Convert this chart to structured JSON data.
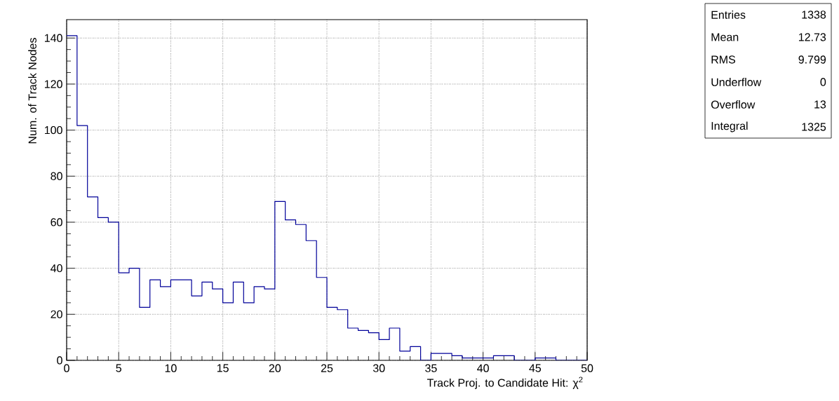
{
  "chart_data": {
    "type": "histogram",
    "xlabel": "Track Proj. to Candidate Hit: χ$^{2}$",
    "ylabel": "Num. of Track Nodes",
    "bins": [
      0,
      1,
      2,
      3,
      4,
      5,
      6,
      7,
      8,
      9,
      10,
      11,
      12,
      13,
      14,
      15,
      16,
      17,
      18,
      19,
      20,
      21,
      22,
      23,
      24,
      25,
      26,
      27,
      28,
      29,
      30,
      31,
      32,
      33,
      34,
      35,
      36,
      37,
      38,
      39,
      40,
      41,
      42,
      43,
      44,
      45,
      46,
      47,
      48,
      49,
      50
    ],
    "values": [
      141,
      102,
      71,
      62,
      60,
      38,
      40,
      23,
      35,
      32,
      35,
      35,
      28,
      34,
      31,
      25,
      34,
      25,
      32,
      31,
      69,
      61,
      59,
      52,
      36,
      23,
      22,
      14,
      13,
      12,
      9,
      14,
      4,
      6,
      0,
      3,
      3,
      2,
      1,
      1,
      1,
      2,
      2,
      0,
      0,
      1,
      1,
      0,
      0,
      0
    ],
    "color": "#000099",
    "xlim": [
      0,
      50
    ],
    "ylim": [
      0,
      148
    ],
    "xticks": [
      0,
      5,
      10,
      15,
      20,
      25,
      30,
      35,
      40,
      45,
      50
    ],
    "yticks": [
      0,
      20,
      40,
      60,
      80,
      100,
      120,
      140
    ],
    "grid": true,
    "annotations": [
      "Entries",
      "1338",
      "Mean",
      "12.73",
      "RMS",
      "9.799",
      "Underflow",
      "0",
      "Overflow",
      "13",
      "Integral",
      "1325"
    ]
  }
}
